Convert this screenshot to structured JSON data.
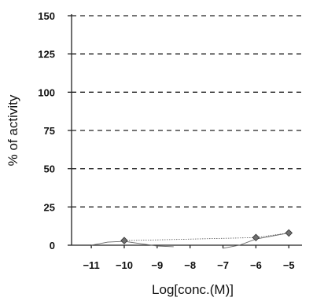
{
  "chart_data": {
    "type": "scatter",
    "xlabel": "Log[conc.(M)]",
    "ylabel": "% of activity",
    "xlim": [
      -11.6,
      -4.6
    ],
    "ylim": [
      0,
      150
    ],
    "x_ticks": [
      -11,
      -10,
      -9,
      -8,
      -7,
      -6,
      -5
    ],
    "y_ticks": [
      0,
      25,
      50,
      75,
      100,
      125,
      150
    ],
    "grid": "horizontal-dashed",
    "series": [
      {
        "values": [
          {
            "x": -10,
            "y": 3
          },
          {
            "x": -6,
            "y": 5
          },
          {
            "x": -5,
            "y": 8
          }
        ],
        "color": "#707070"
      }
    ],
    "fit_curves": [
      {
        "values": [
          {
            "x": -11.0,
            "y": 0
          },
          {
            "x": -10.5,
            "y": 2
          },
          {
            "x": -10.0,
            "y": 2.5
          },
          {
            "x": -9.5,
            "y": 1
          },
          {
            "x": -9.0,
            "y": -0.5
          },
          {
            "x": -8.5,
            "y": -1
          }
        ]
      },
      {
        "values": [
          {
            "x": -7.0,
            "y": -2
          },
          {
            "x": -6.5,
            "y": 0
          },
          {
            "x": -6.0,
            "y": 4
          },
          {
            "x": -5.5,
            "y": 6
          },
          {
            "x": -5.0,
            "y": 8
          }
        ]
      }
    ]
  }
}
